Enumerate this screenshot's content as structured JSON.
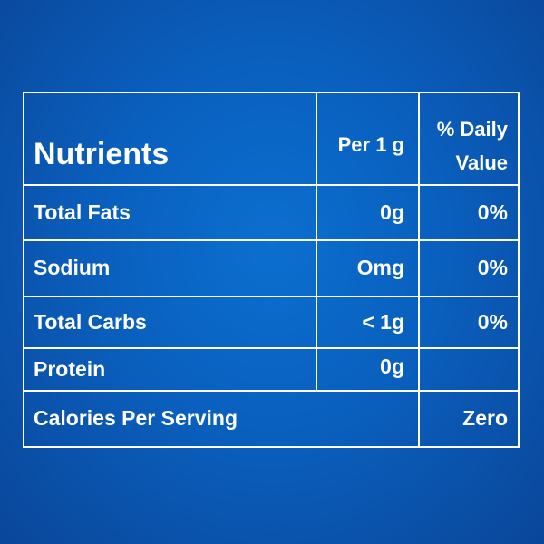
{
  "table": {
    "header": {
      "nutrients": "Nutrients",
      "per": "Per 1 g",
      "daily_line1": "% Daily",
      "daily_line2": "Value"
    },
    "rows": [
      {
        "name": "Total Fats",
        "per": "0g",
        "daily": "0%"
      },
      {
        "name": "Sodium",
        "per": "Omg",
        "daily": "0%"
      },
      {
        "name": "Total Carbs",
        "per": "< 1g",
        "daily": "0%"
      },
      {
        "name": "Protein",
        "per": "0g",
        "daily": ""
      }
    ],
    "footer": {
      "label": "Calories Per Serving",
      "value": "Zero"
    }
  },
  "colors": {
    "background": "#0a5fbd",
    "lines": "#ffffff",
    "text": "#ffffff"
  }
}
